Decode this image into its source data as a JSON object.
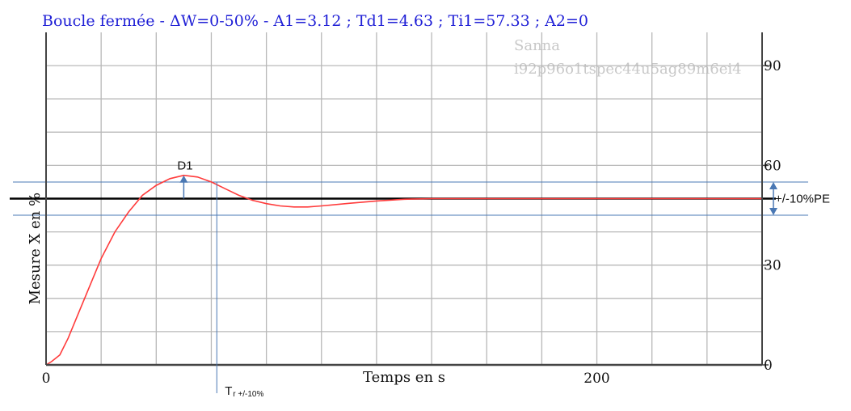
{
  "chart_data": {
    "type": "line",
    "title": "Boucle fermée - ΔW=0-50% - A1=3.12 ; Td1=4.63 ; Ti1=57.33 ; A2=0",
    "xlabel": "Temps en s",
    "ylabel": "Mesure X en %",
    "xlim": [
      0,
      260
    ],
    "ylim": [
      0,
      100
    ],
    "x_ticks": [
      0,
      200
    ],
    "y_ticks": [
      0,
      30,
      60,
      90
    ],
    "grid": true,
    "setpoint": 50,
    "tolerance_band": [
      45,
      55
    ],
    "series": [
      {
        "x": [
          0,
          2,
          5,
          8,
          12,
          16,
          20,
          25,
          30,
          35,
          40,
          45,
          50,
          55,
          60,
          65,
          70,
          75,
          80,
          85,
          90,
          95,
          100,
          110,
          120,
          130,
          140,
          150,
          160,
          170,
          180,
          190,
          200,
          210,
          220,
          230,
          240,
          250,
          260
        ],
        "y": [
          0,
          1,
          3,
          8,
          16,
          24,
          32,
          40,
          46,
          51,
          54,
          56,
          57,
          56.5,
          55,
          53,
          51,
          49.5,
          48.5,
          47.8,
          47.5,
          47.5,
          47.8,
          48.6,
          49.3,
          49.8,
          50,
          50,
          50,
          50,
          50,
          50,
          50,
          50,
          50,
          50,
          50,
          50,
          50
        ],
        "color": "#ff3b3b"
      }
    ],
    "annotations": {
      "overshoot_label": "D1",
      "band_label": "+/-10%PE",
      "response_time_main": "T",
      "response_time_sub": "r +/-10%"
    },
    "watermark": [
      "Sanna",
      "i92p96o1tspec44u5ag89m6ei4"
    ]
  }
}
